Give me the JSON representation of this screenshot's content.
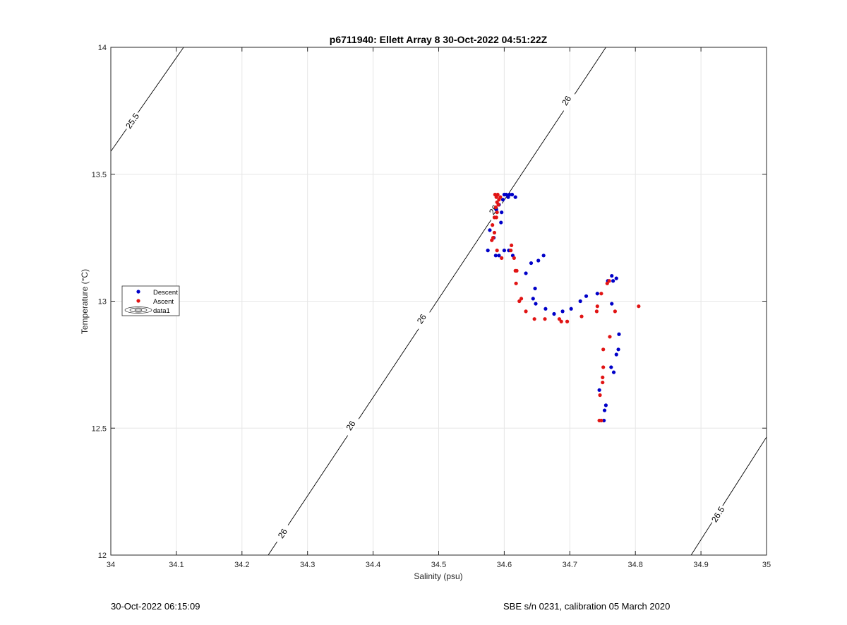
{
  "chart_data": {
    "type": "scatter",
    "title": "p6711940: Ellett Array 8 30-Oct-2022 04:51:22Z",
    "xlabel": "Salinity (psu)",
    "ylabel": "Temperature (°C)",
    "xlim": [
      34,
      35
    ],
    "ylim": [
      12,
      14
    ],
    "xticks": [
      "34",
      "34.1",
      "34.2",
      "34.3",
      "34.4",
      "34.5",
      "34.6",
      "34.7",
      "34.8",
      "34.9",
      "35"
    ],
    "yticks": [
      "12",
      "12.5",
      "13",
      "13.5",
      "14"
    ],
    "grid": true,
    "legend_position": "left-middle",
    "legend": [
      "Descent",
      "Ascent",
      "data1"
    ],
    "series": [
      {
        "name": "Descent",
        "color": "#0000c8",
        "points": [
          [
            34.575,
            13.2
          ],
          [
            34.578,
            13.28
          ],
          [
            34.584,
            13.25
          ],
          [
            34.587,
            13.18
          ],
          [
            34.592,
            13.18
          ],
          [
            34.588,
            13.36
          ],
          [
            34.592,
            13.38
          ],
          [
            34.595,
            13.31
          ],
          [
            34.596,
            13.35
          ],
          [
            34.598,
            13.4
          ],
          [
            34.6,
            13.42
          ],
          [
            34.603,
            13.42
          ],
          [
            34.606,
            13.41
          ],
          [
            34.608,
            13.42
          ],
          [
            34.612,
            13.42
          ],
          [
            34.617,
            13.41
          ],
          [
            34.6,
            13.2
          ],
          [
            34.607,
            13.2
          ],
          [
            34.613,
            13.18
          ],
          [
            34.633,
            13.11
          ],
          [
            34.641,
            13.15
          ],
          [
            34.652,
            13.16
          ],
          [
            34.66,
            13.18
          ],
          [
            34.644,
            13.01
          ],
          [
            34.647,
            13.05
          ],
          [
            34.648,
            12.99
          ],
          [
            34.663,
            12.97
          ],
          [
            34.676,
            12.95
          ],
          [
            34.689,
            12.96
          ],
          [
            34.702,
            12.97
          ],
          [
            34.716,
            13.0
          ],
          [
            34.725,
            13.02
          ],
          [
            34.742,
            13.03
          ],
          [
            34.758,
            13.08
          ],
          [
            34.764,
            13.1
          ],
          [
            34.766,
            13.08
          ],
          [
            34.771,
            13.09
          ],
          [
            34.764,
            12.99
          ],
          [
            34.775,
            12.87
          ],
          [
            34.774,
            12.81
          ],
          [
            34.771,
            12.79
          ],
          [
            34.763,
            12.74
          ],
          [
            34.767,
            12.72
          ],
          [
            34.745,
            12.65
          ],
          [
            34.755,
            12.59
          ],
          [
            34.753,
            12.57
          ],
          [
            34.752,
            12.53
          ]
        ]
      },
      {
        "name": "Ascent",
        "color": "#e11414",
        "points": [
          [
            34.586,
            13.42
          ],
          [
            34.588,
            13.41
          ],
          [
            34.59,
            13.42
          ],
          [
            34.592,
            13.4
          ],
          [
            34.594,
            13.41
          ],
          [
            34.589,
            13.39
          ],
          [
            34.591,
            13.38
          ],
          [
            34.587,
            13.37
          ],
          [
            34.589,
            13.35
          ],
          [
            34.585,
            13.33
          ],
          [
            34.588,
            13.33
          ],
          [
            34.582,
            13.3
          ],
          [
            34.585,
            13.27
          ],
          [
            34.583,
            13.25
          ],
          [
            34.581,
            13.24
          ],
          [
            34.589,
            13.2
          ],
          [
            34.596,
            13.17
          ],
          [
            34.611,
            13.22
          ],
          [
            34.61,
            13.2
          ],
          [
            34.615,
            13.17
          ],
          [
            34.617,
            13.12
          ],
          [
            34.619,
            13.12
          ],
          [
            34.618,
            13.07
          ],
          [
            34.623,
            13.0
          ],
          [
            34.626,
            13.01
          ],
          [
            34.633,
            12.96
          ],
          [
            34.646,
            12.93
          ],
          [
            34.662,
            12.93
          ],
          [
            34.684,
            12.93
          ],
          [
            34.687,
            12.92
          ],
          [
            34.696,
            12.92
          ],
          [
            34.718,
            12.94
          ],
          [
            34.742,
            12.98
          ],
          [
            34.741,
            12.96
          ],
          [
            34.748,
            13.03
          ],
          [
            34.757,
            13.07
          ],
          [
            34.76,
            13.08
          ],
          [
            34.769,
            12.96
          ],
          [
            34.805,
            12.98
          ],
          [
            34.761,
            12.86
          ],
          [
            34.751,
            12.81
          ],
          [
            34.751,
            12.74
          ],
          [
            34.75,
            12.7
          ],
          [
            34.75,
            12.68
          ],
          [
            34.746,
            12.63
          ],
          [
            34.745,
            12.53
          ],
          [
            34.748,
            12.53
          ]
        ]
      }
    ],
    "contours": [
      {
        "name": "25.5",
        "points": [
          [
            34.0,
            13.59
          ],
          [
            34.111,
            14.0
          ]
        ],
        "labels": [
          {
            "text": "25.5",
            "at": [
              34.033,
              13.71
            ]
          }
        ]
      },
      {
        "name": "26",
        "points": [
          [
            34.24,
            12.0
          ],
          [
            34.755,
            14.0
          ]
        ],
        "labels": [
          {
            "text": "26",
            "at": [
              34.262,
              12.085
            ]
          },
          {
            "text": "26",
            "at": [
              34.366,
              12.51
            ]
          },
          {
            "text": "26",
            "at": [
              34.474,
              12.93
            ]
          },
          {
            "text": "26",
            "at": [
              34.584,
              13.36
            ]
          },
          {
            "text": "26",
            "at": [
              34.695,
              13.79
            ]
          }
        ]
      },
      {
        "name": "26.5",
        "points": [
          [
            34.885,
            12.0
          ],
          [
            35.0,
            12.465
          ]
        ],
        "labels": [
          {
            "text": "26.5",
            "at": [
              34.926,
              12.16
            ]
          }
        ]
      }
    ]
  },
  "footer": {
    "timestamp": "30-Oct-2022 06:15:09",
    "calibration": "SBE s/n 0231, calibration 05 March 2020"
  }
}
